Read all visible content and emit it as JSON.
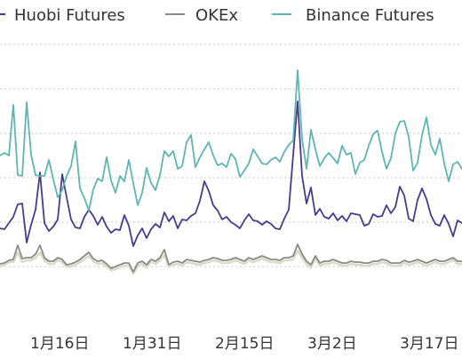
{
  "chart_data": {
    "type": "line",
    "title": "",
    "xlabel": "",
    "ylabel": "",
    "grid": true,
    "legend_position": "top",
    "x_tick_labels": [
      "1月16日",
      "1月31日",
      "2月15日",
      "3月2日",
      "3月17日"
    ],
    "ylim": [
      0,
      350
    ],
    "series": [
      {
        "name": "Huobi Futures",
        "color": "#4a3a8c",
        "values": [
          93,
          92,
          99,
          106,
          120,
          121,
          77,
          97,
          114,
          156,
          99,
          90,
          95,
          103,
          154,
          128,
          103,
          94,
          93,
          106,
          114,
          107,
          97,
          106,
          95,
          88,
          92,
          91,
          108,
          96,
          73,
          85,
          93,
          82,
          92,
          98,
          94,
          111,
          101,
          107,
          93,
          103,
          102,
          107,
          110,
          124,
          146,
          135,
          119,
          113,
          103,
          106,
          100,
          97,
          93,
          102,
          109,
          102,
          101,
          97,
          101,
          98,
          93,
          92,
          104,
          114,
          176,
          236,
          152,
          121,
          139,
          108,
          115,
          106,
          104,
          110,
          102,
          107,
          101,
          110,
          109,
          108,
          96,
          98,
          109,
          106,
          107,
          119,
          110,
          117,
          140,
          130,
          104,
          101,
          125,
          138,
          126,
          108,
          98,
          96,
          108,
          98,
          84,
          102,
          99
        ]
      },
      {
        "name": "OKEx",
        "color": "#8a8a85",
        "values": [
          53,
          54,
          57,
          58,
          74,
          59,
          60,
          60,
          64,
          74,
          60,
          56,
          56,
          60,
          58,
          52,
          53,
          55,
          58,
          62,
          66,
          59,
          56,
          57,
          53,
          48,
          50,
          52,
          54,
          54,
          44,
          54,
          56,
          52,
          58,
          56,
          60,
          69,
          52,
          55,
          56,
          54,
          58,
          57,
          56,
          55,
          57,
          58,
          60,
          59,
          57,
          57,
          58,
          60,
          58,
          56,
          60,
          58,
          60,
          62,
          60,
          58,
          58,
          57,
          60,
          60,
          62,
          75,
          64,
          56,
          52,
          62,
          54,
          56,
          56,
          58,
          56,
          54,
          54,
          56,
          55,
          55,
          54,
          54,
          56,
          56,
          58,
          57,
          54,
          54,
          54,
          57,
          55,
          56,
          58,
          56,
          54,
          56,
          58,
          56,
          56,
          58,
          60,
          56,
          56
        ]
      },
      {
        "name": "Binance Futures",
        "color": "#5fb5b0",
        "values": [
          175,
          178,
          175,
          232,
          153,
          152,
          235,
          176,
          153,
          152,
          152,
          170,
          148,
          128,
          136,
          152,
          163,
          191,
          138,
          127,
          113,
          137,
          149,
          146,
          173,
          147,
          133,
          152,
          146,
          170,
          144,
          119,
          133,
          161,
          144,
          136,
          153,
          180,
          174,
          180,
          160,
          163,
          190,
          198,
          162,
          173,
          182,
          190,
          175,
          164,
          166,
          162,
          177,
          171,
          151,
          158,
          166,
          182,
          174,
          166,
          165,
          170,
          173,
          168,
          179,
          187,
          192,
          271,
          194,
          160,
          204,
          182,
          163,
          172,
          178,
          172,
          166,
          186,
          176,
          178,
          154,
          167,
          170,
          186,
          199,
          203,
          179,
          160,
          172,
          200,
          213,
          214,
          196,
          158,
          167,
          198,
          218,
          187,
          176,
          194,
          166,
          146,
          165,
          168,
          160
        ]
      },
      {
        "name": "",
        "color": "#d6dcc6",
        "values": [
          50,
          52,
          55,
          55,
          66,
          55,
          57,
          57,
          60,
          66,
          57,
          53,
          53,
          57,
          55,
          50,
          50,
          52,
          55,
          58,
          62,
          56,
          53,
          54,
          50,
          46,
          47,
          49,
          51,
          51,
          42,
          51,
          53,
          49,
          55,
          53,
          57,
          63,
          50,
          52,
          53,
          51,
          55,
          54,
          53,
          52,
          54,
          55,
          57,
          56,
          54,
          54,
          55,
          57,
          55,
          53,
          57,
          55,
          57,
          59,
          57,
          55,
          55,
          54,
          57,
          57,
          58,
          68,
          60,
          53,
          49,
          59,
          51,
          53,
          53,
          55,
          53,
          51,
          51,
          53,
          52,
          52,
          51,
          51,
          53,
          53,
          55,
          54,
          51,
          51,
          51,
          54,
          52,
          53,
          55,
          53,
          51,
          53,
          55,
          53,
          53,
          55,
          57,
          53,
          53
        ]
      }
    ]
  }
}
